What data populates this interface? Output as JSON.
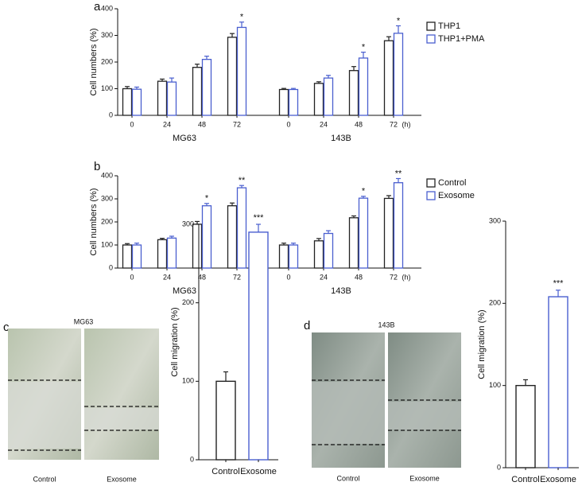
{
  "panel_labels": [
    "a",
    "b",
    "c",
    "d"
  ],
  "images": [
    {
      "title": "MG63",
      "labels": [
        "Control",
        "Exosome"
      ]
    },
    {
      "title": "143B",
      "labels": [
        "Control",
        "Exosome"
      ]
    }
  ],
  "chart_data": [
    {
      "type": "grouped_bar",
      "y_label": "Cell numbers (%)",
      "ylim": [
        0,
        400
      ],
      "yticks": [
        0,
        100,
        200,
        300,
        400
      ],
      "categories": [
        "0",
        "24",
        "48",
        "72",
        "0",
        "24",
        "48",
        "72"
      ],
      "group_labels": [
        "MG63",
        "143B"
      ],
      "x_unit": "(h)",
      "bar_fill": "#ffffff",
      "legend": "top-right",
      "series": [
        {
          "name": "THP1",
          "color": "#222222",
          "values": [
            100,
            128,
            180,
            293,
            97,
            120,
            168,
            280
          ],
          "errors": [
            8,
            8,
            12,
            14,
            4,
            6,
            15,
            15
          ],
          "sig_labels": [
            null,
            null,
            null,
            null,
            null,
            null,
            null,
            null
          ]
        },
        {
          "name": "THP1+PMA",
          "color": "#4a5fcf",
          "values": [
            98,
            125,
            210,
            330,
            97,
            140,
            215,
            308
          ],
          "errors": [
            8,
            15,
            12,
            20,
            4,
            10,
            22,
            28
          ],
          "sig_labels": [
            null,
            null,
            null,
            "*",
            null,
            null,
            "*",
            "*"
          ]
        }
      ]
    },
    {
      "type": "grouped_bar",
      "y_label": "Cell numbers (%)",
      "ylim": [
        0,
        400
      ],
      "yticks": [
        0,
        100,
        200,
        300,
        400
      ],
      "categories": [
        "0",
        "24",
        "48",
        "72",
        "0",
        "24",
        "48",
        "72"
      ],
      "group_labels": [
        "MG63",
        "143B"
      ],
      "x_unit": "(h)",
      "bar_fill": "#ffffff",
      "legend": "top-right",
      "series": [
        {
          "name": "Control",
          "color": "#222222",
          "values": [
            100,
            123,
            190,
            270,
            100,
            118,
            218,
            302
          ],
          "errors": [
            6,
            6,
            12,
            12,
            8,
            10,
            8,
            12
          ],
          "sig_labels": [
            null,
            null,
            null,
            null,
            null,
            null,
            null,
            null
          ]
        },
        {
          "name": "Exosome",
          "color": "#4a5fcf",
          "values": [
            100,
            130,
            270,
            348,
            100,
            150,
            303,
            370
          ],
          "errors": [
            8,
            8,
            10,
            10,
            8,
            12,
            8,
            18
          ],
          "sig_labels": [
            null,
            null,
            "*",
            "**",
            null,
            null,
            "*",
            "**"
          ]
        }
      ]
    },
    {
      "type": "bar",
      "y_label": "Cell migration (%)",
      "ylim": [
        0,
        300
      ],
      "yticks": [
        0,
        100,
        200,
        300
      ],
      "categories": [
        "Control",
        "Exosome"
      ],
      "values": [
        100,
        290
      ],
      "errors": [
        12,
        10
      ],
      "colors": [
        "#222222",
        "#4a5fcf"
      ],
      "bar_fill": "#ffffff",
      "sig_labels": [
        null,
        "***"
      ]
    },
    {
      "type": "bar",
      "y_label": "Cell migration (%)",
      "ylim": [
        0,
        300
      ],
      "yticks": [
        0,
        100,
        200,
        300
      ],
      "categories": [
        "Control",
        "Exosome"
      ],
      "values": [
        100,
        208
      ],
      "errors": [
        7,
        8
      ],
      "colors": [
        "#222222",
        "#4a5fcf"
      ],
      "bar_fill": "#ffffff",
      "sig_labels": [
        null,
        "***"
      ]
    }
  ]
}
